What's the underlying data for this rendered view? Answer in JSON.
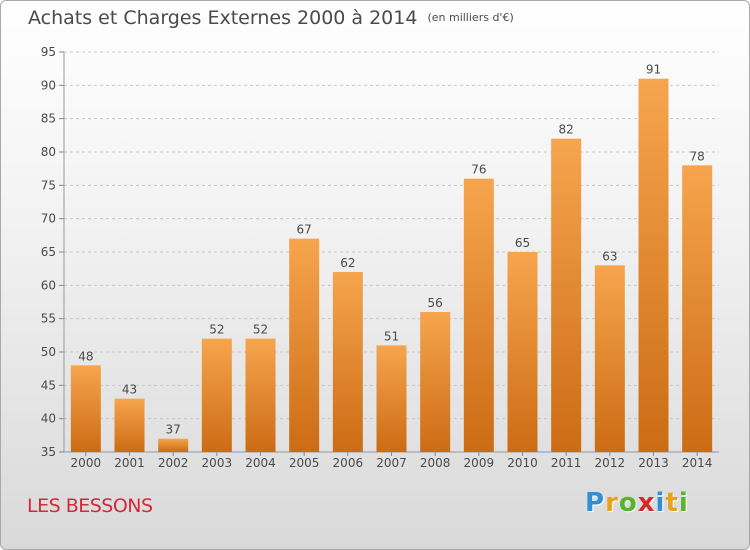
{
  "title": "Achats et Charges Externes 2000 à 2014",
  "unit": "(en milliers d'€)",
  "commune": "LES BESSONS",
  "logo": {
    "letters": [
      "P",
      "r",
      "o",
      "x",
      "i",
      "t",
      "i"
    ],
    "colors": [
      "#2f8fd6",
      "#e8a21a",
      "#58b32e",
      "#d62828",
      "#2f8fd6",
      "#e8a21a",
      "#58b32e"
    ]
  },
  "colors": {
    "bar_top": "#f6a54e",
    "bar_bottom": "#cc6c14",
    "grid": "#c8c8c8",
    "text": "#4a4a4a"
  },
  "chart_data": {
    "type": "bar",
    "categories": [
      "2000",
      "2001",
      "2002",
      "2003",
      "2004",
      "2005",
      "2006",
      "2007",
      "2008",
      "2009",
      "2010",
      "2011",
      "2012",
      "2013",
      "2014"
    ],
    "values": [
      48,
      43,
      37,
      52,
      52,
      67,
      62,
      51,
      56,
      76,
      65,
      82,
      63,
      91,
      78
    ],
    "ylim": [
      35,
      95
    ],
    "yticks": [
      35,
      40,
      45,
      50,
      55,
      60,
      65,
      70,
      75,
      80,
      85,
      90,
      95
    ],
    "grid": true
  }
}
